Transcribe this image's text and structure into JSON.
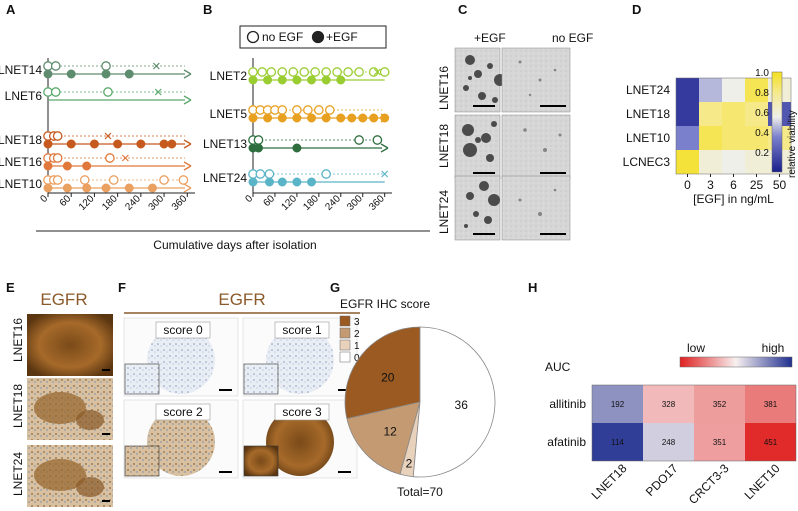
{
  "panels": {
    "A": "A",
    "B": "B",
    "C": "C",
    "D": "D",
    "E": "E",
    "F": "F",
    "G": "G",
    "H": "H"
  },
  "legend_ab": {
    "open": "no EGF",
    "closed": "+EGF"
  },
  "x_axis_title": "Cumulative days after isolation",
  "colors": {
    "LNET14": "#5e8c6e",
    "LNET6": "#5aa86c",
    "LNET18": "#c65a1e",
    "LNET16": "#e0783c",
    "LNET10": "#eaa060",
    "LNET2": "#9acd32",
    "LNET5": "#e8a020",
    "LNET13": "#2e6e3e",
    "LNET24": "#5ab4c8",
    "brown_title": "#8b5a2b"
  },
  "chart_data": [
    {
      "type": "scatter",
      "panel": "A",
      "x_ticks": [
        0,
        60,
        120,
        180,
        240,
        300,
        360
      ],
      "xlim": [
        0,
        380
      ],
      "series": [
        {
          "name": "LNET14",
          "open": [
            0,
            20,
            150
          ],
          "closed": [
            0,
            60,
            150,
            210
          ],
          "end": {
            "type": "x",
            "x": 280
          },
          "arrow": true
        },
        {
          "name": "LNET6",
          "open": [
            0,
            20,
            155
          ],
          "closed": [],
          "end": {
            "type": "x",
            "x": 285
          },
          "arrow": true
        },
        {
          "name": "LNET18",
          "open": [
            0,
            15,
            25
          ],
          "closed": [
            0,
            60,
            120,
            180,
            240,
            300,
            320
          ],
          "end": {
            "type": "x",
            "x": 155
          },
          "arrow": true
        },
        {
          "name": "LNET16",
          "open": [
            0,
            15,
            25,
            160
          ],
          "closed": [
            0,
            50,
            100
          ],
          "end": {
            "type": "x",
            "x": 200
          },
          "arrow": true
        },
        {
          "name": "LNET10",
          "open": [
            0,
            15,
            25,
            95,
            170,
            300,
            350
          ],
          "closed": [
            0,
            50,
            100,
            150,
            210,
            270
          ],
          "end": null,
          "arrow": true
        }
      ]
    },
    {
      "type": "scatter",
      "panel": "B",
      "x_ticks": [
        0,
        60,
        120,
        180,
        240,
        300,
        360
      ],
      "xlim": [
        0,
        380
      ],
      "series": [
        {
          "name": "LNET2",
          "open": [
            0,
            25,
            50,
            80,
            110,
            140,
            170,
            200,
            230,
            260,
            290,
            330,
            360
          ],
          "closed": [
            0,
            40,
            80,
            120,
            160,
            200,
            240
          ],
          "end": {
            "type": "x",
            "x": 340
          },
          "arrow": false
        },
        {
          "name": "LNET5",
          "open": [
            0,
            20,
            40,
            60,
            80,
            120,
            150,
            180,
            210
          ],
          "closed": [
            0,
            40,
            80,
            120,
            160,
            200,
            240,
            270,
            300,
            330,
            360
          ],
          "end": null,
          "arrow": true
        },
        {
          "name": "LNET13",
          "open": [
            0,
            15,
            290,
            340
          ],
          "closed": [
            0,
            15,
            120
          ],
          "end": null,
          "arrow": true
        },
        {
          "name": "LNET24",
          "open": [
            0,
            20,
            45,
            200
          ],
          "closed": [
            0,
            45,
            80,
            120,
            160
          ],
          "end": {
            "type": "x",
            "x": 360
          },
          "arrow": false
        }
      ]
    },
    {
      "type": "heatmap",
      "panel": "D",
      "rows": [
        "LNET24",
        "LNET18",
        "LNET10",
        "LCNEC3"
      ],
      "cols": [
        "0",
        "3",
        "6",
        "25",
        "50"
      ],
      "values": [
        [
          0.1,
          0.45,
          0.55,
          0.9,
          0.6
        ],
        [
          0.1,
          0.8,
          0.85,
          0.8,
          0.2
        ],
        [
          0.35,
          0.9,
          0.85,
          0.85,
          0.8
        ],
        [
          0.95,
          0.6,
          0.55,
          0.6,
          0.6
        ]
      ],
      "xlabel": "[EGF] in ng/mL",
      "colorbar_label": "relative viability",
      "colorbar_ticks": [
        "1.0",
        "0.8",
        "0.6",
        "0.4",
        "0.2"
      ]
    },
    {
      "type": "pie",
      "panel": "G",
      "title": "EGFR IHC score",
      "slices": [
        {
          "label": "3",
          "value": 20,
          "color": "#9a5a22"
        },
        {
          "label": "2",
          "value": 12,
          "color": "#c49a72"
        },
        {
          "label": "1",
          "value": 2,
          "color": "#e8d2bc"
        },
        {
          "label": "0",
          "value": 36,
          "color": "#ffffff"
        }
      ],
      "total_label": "Total=70"
    },
    {
      "type": "heatmap",
      "panel": "H",
      "title": "AUC",
      "rows": [
        "allitinib",
        "afatinib"
      ],
      "cols": [
        "LNET18",
        "PDO17",
        "CRCT3-3",
        "LNET10"
      ],
      "values": [
        [
          192,
          328,
          352,
          381
        ],
        [
          114,
          248,
          351,
          451
        ]
      ],
      "scale_low": "low",
      "scale_high": "high"
    }
  ],
  "panel_c": {
    "col_labels": [
      "+EGF",
      "no EGF"
    ],
    "row_labels": [
      "LNET16",
      "LNET18",
      "LNET24"
    ]
  },
  "panel_e": {
    "title": "EGFR",
    "row_labels": [
      "LNET16",
      "LNET18",
      "LNET24"
    ]
  },
  "panel_f": {
    "title": "EGFR",
    "scores": [
      "score 0",
      "score 1",
      "score 2",
      "score 3"
    ]
  }
}
